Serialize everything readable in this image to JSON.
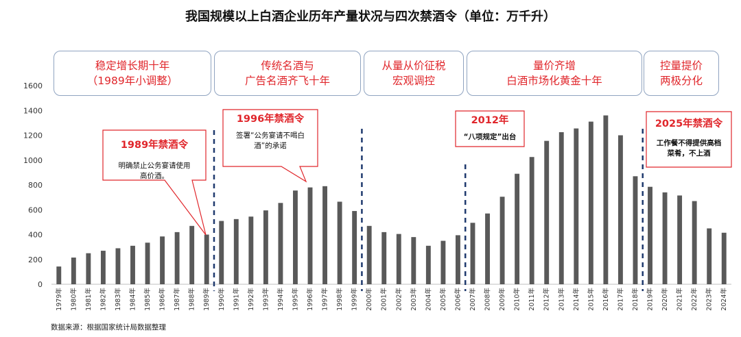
{
  "title": "我国规模以上白酒企业历年产量状况与四次禁酒令（单位：万千升）",
  "phases": [
    {
      "line1": "稳定增长期十年",
      "line2": "（1989年小调整）"
    },
    {
      "line1": "传统名酒与",
      "line2": "广告名酒齐飞十年"
    },
    {
      "line1": "从量从价征税",
      "line2": "宏观调控"
    },
    {
      "line1": "量价齐增",
      "line2": "白酒市场化黄金十年"
    },
    {
      "line1": "控量提价",
      "line2": "两极分化"
    }
  ],
  "callouts": [
    {
      "title": "1989年禁酒令",
      "line1": "明确禁止公务宴请使用",
      "line2": "高价酒。"
    },
    {
      "title": "1996年禁酒令",
      "line1": "签署“公务宴请不喝白",
      "line2": "酒”的承诺"
    },
    {
      "title": "2012年",
      "line1": "“八项规定”出台",
      "line2": ""
    },
    {
      "title": "2025年禁酒令",
      "line1": "工作餐不得提供高档",
      "line2": "菜肴，不上酒"
    }
  ],
  "source": "数据来源：根据国家统计局数据整理",
  "colors": {
    "bar": "#595959",
    "red": "#e0262b",
    "divider": "#1f3a6e",
    "box_border": "#8fa3c0"
  },
  "chart_data": {
    "type": "bar",
    "title": "我国规模以上白酒企业历年产量状况与四次禁酒令（单位：万千升）",
    "xlabel": "",
    "ylabel": "",
    "ylim": [
      0,
      1600
    ],
    "yticks": [
      0,
      200,
      400,
      600,
      800,
      1000,
      1200,
      1400,
      1600
    ],
    "grid": false,
    "categories": [
      "1979年",
      "1980年",
      "1981年",
      "1982年",
      "1983年",
      "1984年",
      "1985年",
      "1986年",
      "1987年",
      "1988年",
      "1989年",
      "1990年",
      "1991年",
      "1992年",
      "1993年",
      "1994年",
      "1995年",
      "1996年",
      "1997年",
      "1998年",
      "1999年",
      "2000年",
      "2001年",
      "2002年",
      "2003年",
      "2004年",
      "2005年",
      "2006年",
      "2007年",
      "2008年",
      "2009年",
      "2010年",
      "2011年",
      "2012年",
      "2013年",
      "2014年",
      "2015年",
      "2016年",
      "2017年",
      "2018年",
      "2019年",
      "2020年",
      "2021年",
      "2022年",
      "2023年",
      "2024年"
    ],
    "values": [
      143,
      215,
      250,
      270,
      290,
      310,
      335,
      385,
      420,
      470,
      400,
      510,
      525,
      545,
      595,
      655,
      755,
      780,
      790,
      665,
      590,
      470,
      420,
      405,
      380,
      310,
      350,
      395,
      495,
      570,
      705,
      890,
      1025,
      1155,
      1225,
      1255,
      1310,
      1360,
      1200,
      870,
      785,
      740,
      715,
      670,
      450,
      415
    ],
    "dividers_after": [
      "1989年",
      "1999年",
      "2006年",
      "2018年"
    ]
  }
}
